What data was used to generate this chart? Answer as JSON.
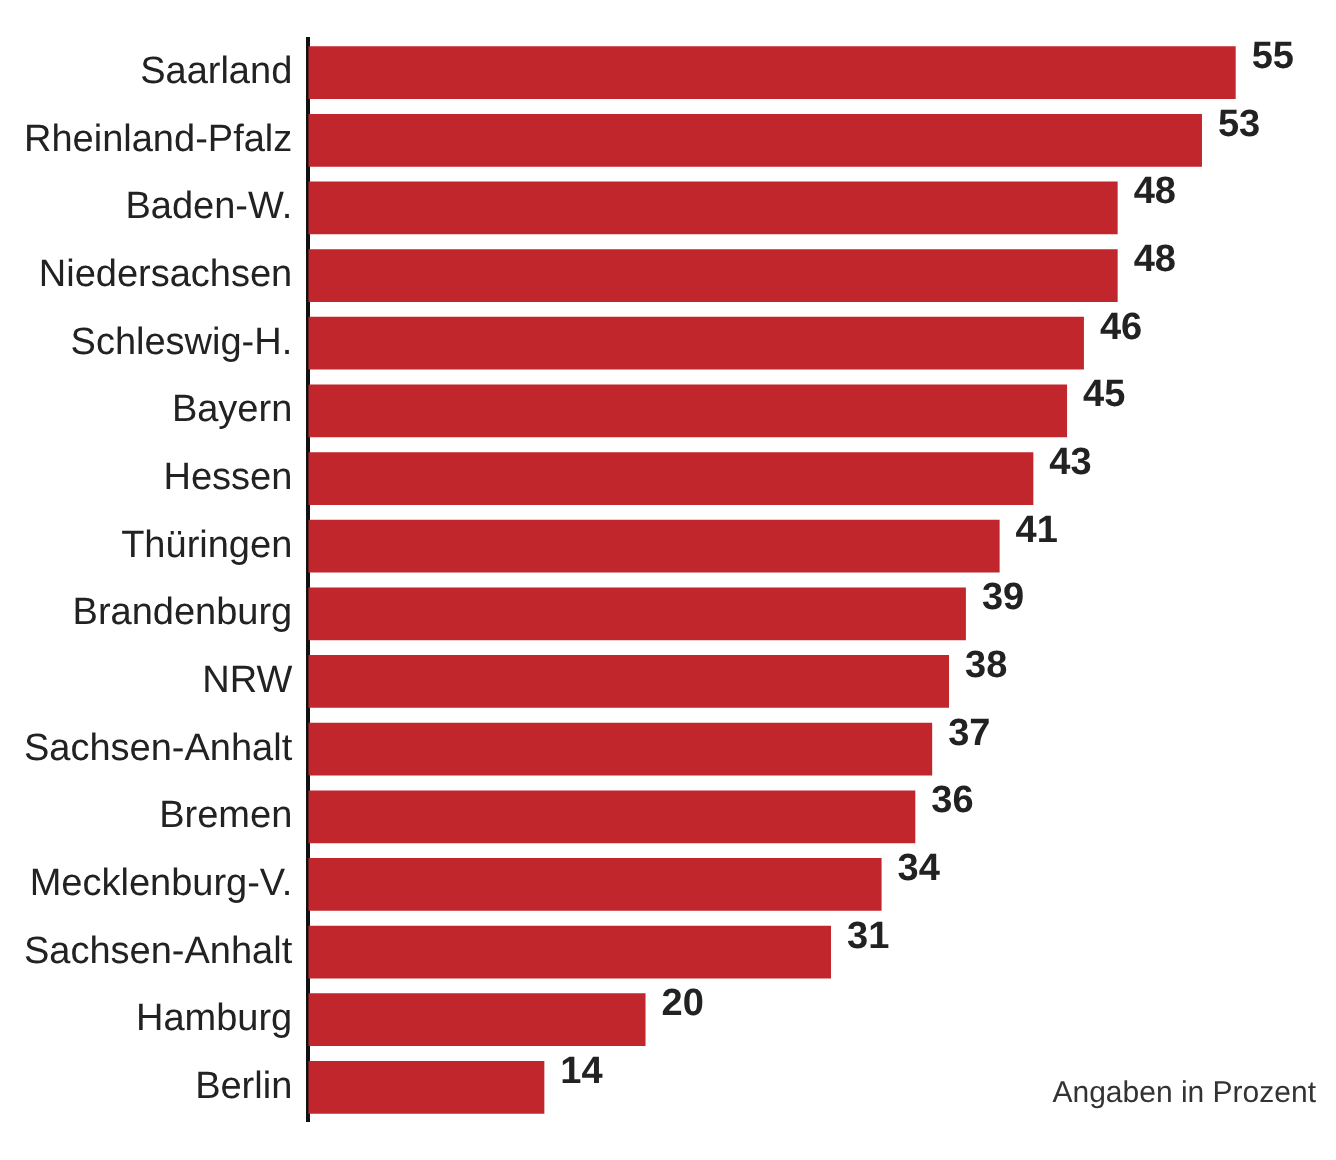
{
  "chart_data": {
    "type": "bar",
    "orientation": "horizontal",
    "categories": [
      "Saarland",
      "Rheinland-Pfalz",
      "Baden-W.",
      "Niedersachsen",
      "Schleswig-H.",
      "Bayern",
      "Hessen",
      "Thüringen",
      "Brandenburg",
      "NRW",
      "Sachsen-Anhalt",
      "Bremen",
      "Mecklenburg-V.",
      "Sachsen-Anhalt",
      "Hamburg",
      "Berlin"
    ],
    "values": [
      55,
      53,
      48,
      48,
      46,
      45,
      43,
      41,
      39,
      38,
      37,
      36,
      34,
      31,
      20,
      14
    ],
    "color": "#c0262c",
    "data_labels": true,
    "legend": false,
    "annotations": [
      "Angaben in Prozent"
    ]
  }
}
